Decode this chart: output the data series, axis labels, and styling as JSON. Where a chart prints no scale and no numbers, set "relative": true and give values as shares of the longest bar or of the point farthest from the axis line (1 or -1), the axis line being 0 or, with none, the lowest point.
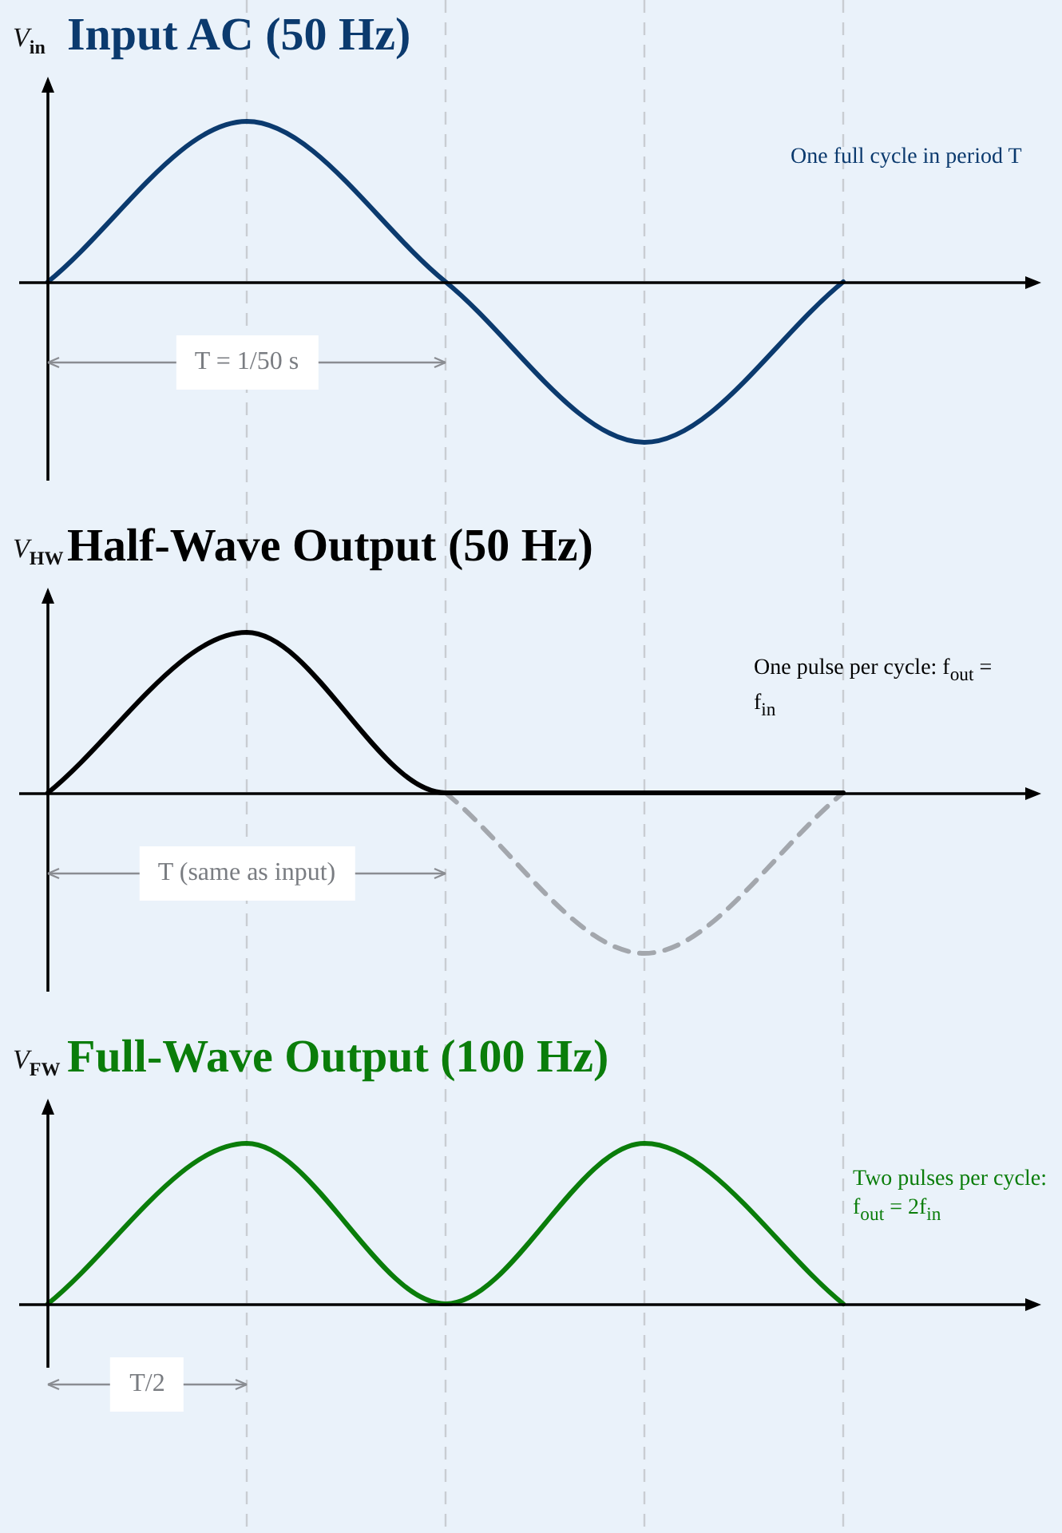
{
  "chart_data": [
    {
      "type": "line",
      "title": "Input AC (50 Hz)",
      "ylabel": "V$_{in}$",
      "relative": true,
      "categories": [
        null,
        null,
        null,
        null,
        null
      ],
      "series": [
        {
          "color": "#0b3a6e",
          "values": [
            0,
            1,
            0,
            -1,
            0
          ]
        }
      ],
      "annotations": [
        "One full cycle in period T",
        "T = 1/50 s"
      ],
      "grid": "x",
      "legend": false,
      "marker": "none"
    },
    {
      "type": "line",
      "title": "Half-Wave Output (50 Hz)",
      "ylabel": "V$_{HW}$",
      "relative": true,
      "categories": [
        null,
        null,
        null,
        null,
        null
      ],
      "series": [
        {
          "color": "#000000",
          "values": [
            0,
            1,
            0,
            0,
            0
          ]
        },
        {
          "color": "#a3a7ad",
          "values": [
            null,
            null,
            0,
            -1,
            0
          ],
          "line_style": "dashed"
        }
      ],
      "annotations": [
        "One pulse per cycle: f$_{out}$ = f$_{in}$",
        "T (same as input)"
      ],
      "grid": "x",
      "legend": false,
      "marker": "none"
    },
    {
      "type": "line",
      "title": "Full-Wave Output (100 Hz)",
      "ylabel": "V$_{FW}$",
      "relative": true,
      "categories": [
        null,
        null,
        null,
        null,
        null
      ],
      "series": [
        {
          "color": "#0a7d0a",
          "values": [
            0,
            1,
            0,
            1,
            0
          ]
        }
      ],
      "annotations": [
        "Two pulses per cycle: f$_{out}$ = 2f$_{in}$",
        "T/2"
      ],
      "grid": "x",
      "legend": false,
      "marker": "none"
    }
  ]
}
